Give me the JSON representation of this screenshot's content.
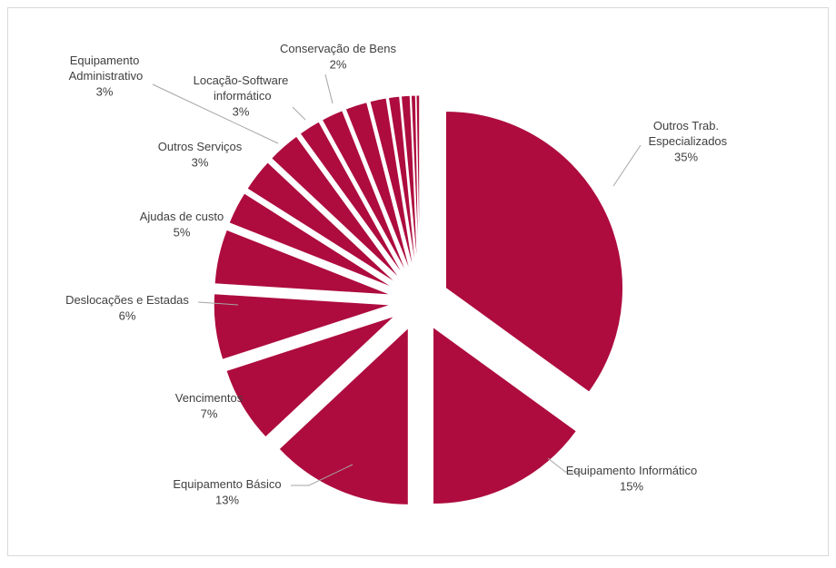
{
  "chart_data": {
    "type": "pie",
    "categories": [
      "Outros Trab. Especializados",
      "Equipamento Informático",
      "Equipamento Básico",
      "Vencimentos",
      "Deslocações e Estadas",
      "Ajudas de custo",
      "Outros Serviços",
      "Equipamento Administrativo",
      "Locação-Software informático",
      "Conservação de Bens",
      null,
      null,
      null,
      null,
      null,
      null,
      null
    ],
    "values": [
      35,
      15,
      13,
      7,
      6,
      5,
      3,
      3,
      3,
      2,
      2,
      2,
      1.5,
      1,
      0.8,
      0.4,
      0.3
    ],
    "value_labels": [
      "35%",
      "15%",
      "13%",
      "7%",
      "6%",
      "5%",
      "3%",
      "3%",
      "3%",
      "2%",
      null,
      null,
      null,
      null,
      null,
      null,
      null
    ],
    "color": "#ae0c3e"
  }
}
